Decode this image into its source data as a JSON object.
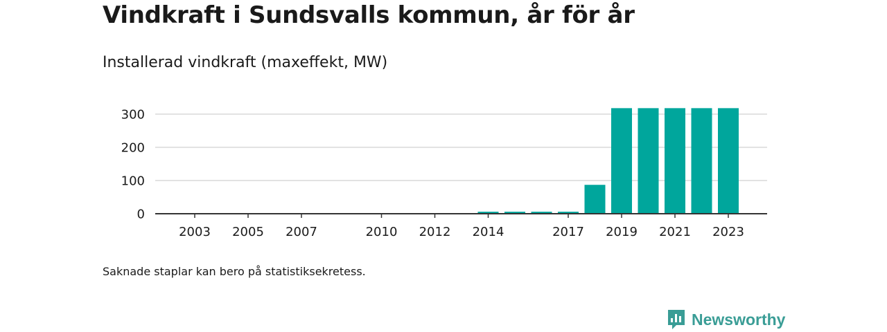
{
  "header": {
    "title": "Vindkraft i Sundsvalls kommun, år för år",
    "subtitle": "Installerad vindkraft (maxeffekt, MW)"
  },
  "footer": {
    "note": "Saknade staplar kan bero på statistiksekretess.",
    "brand": "Newsworthy",
    "brand_color": "#3a9d96"
  },
  "colors": {
    "bar": "#00a69c",
    "grid": "#d9d9d9",
    "axis": "#333333",
    "text": "#1a1a1a"
  },
  "chart_data": {
    "type": "bar",
    "title": "Vindkraft i Sundsvalls kommun, år för år",
    "subtitle": "Installerad vindkraft (maxeffekt, MW)",
    "xlabel": "",
    "ylabel": "",
    "x_range": [
      2002,
      2023
    ],
    "ylim": [
      0,
      300
    ],
    "yticks": [
      0,
      100,
      200,
      300
    ],
    "xticks": [
      2003,
      2005,
      2007,
      2010,
      2012,
      2014,
      2017,
      2019,
      2021,
      2023
    ],
    "grid": true,
    "legend": "none",
    "categories": [
      2014,
      2015,
      2016,
      2017,
      2018,
      2019,
      2020,
      2021,
      2022,
      2023
    ],
    "values": [
      6,
      6,
      6,
      6,
      87,
      318,
      318,
      318,
      318,
      318
    ]
  }
}
